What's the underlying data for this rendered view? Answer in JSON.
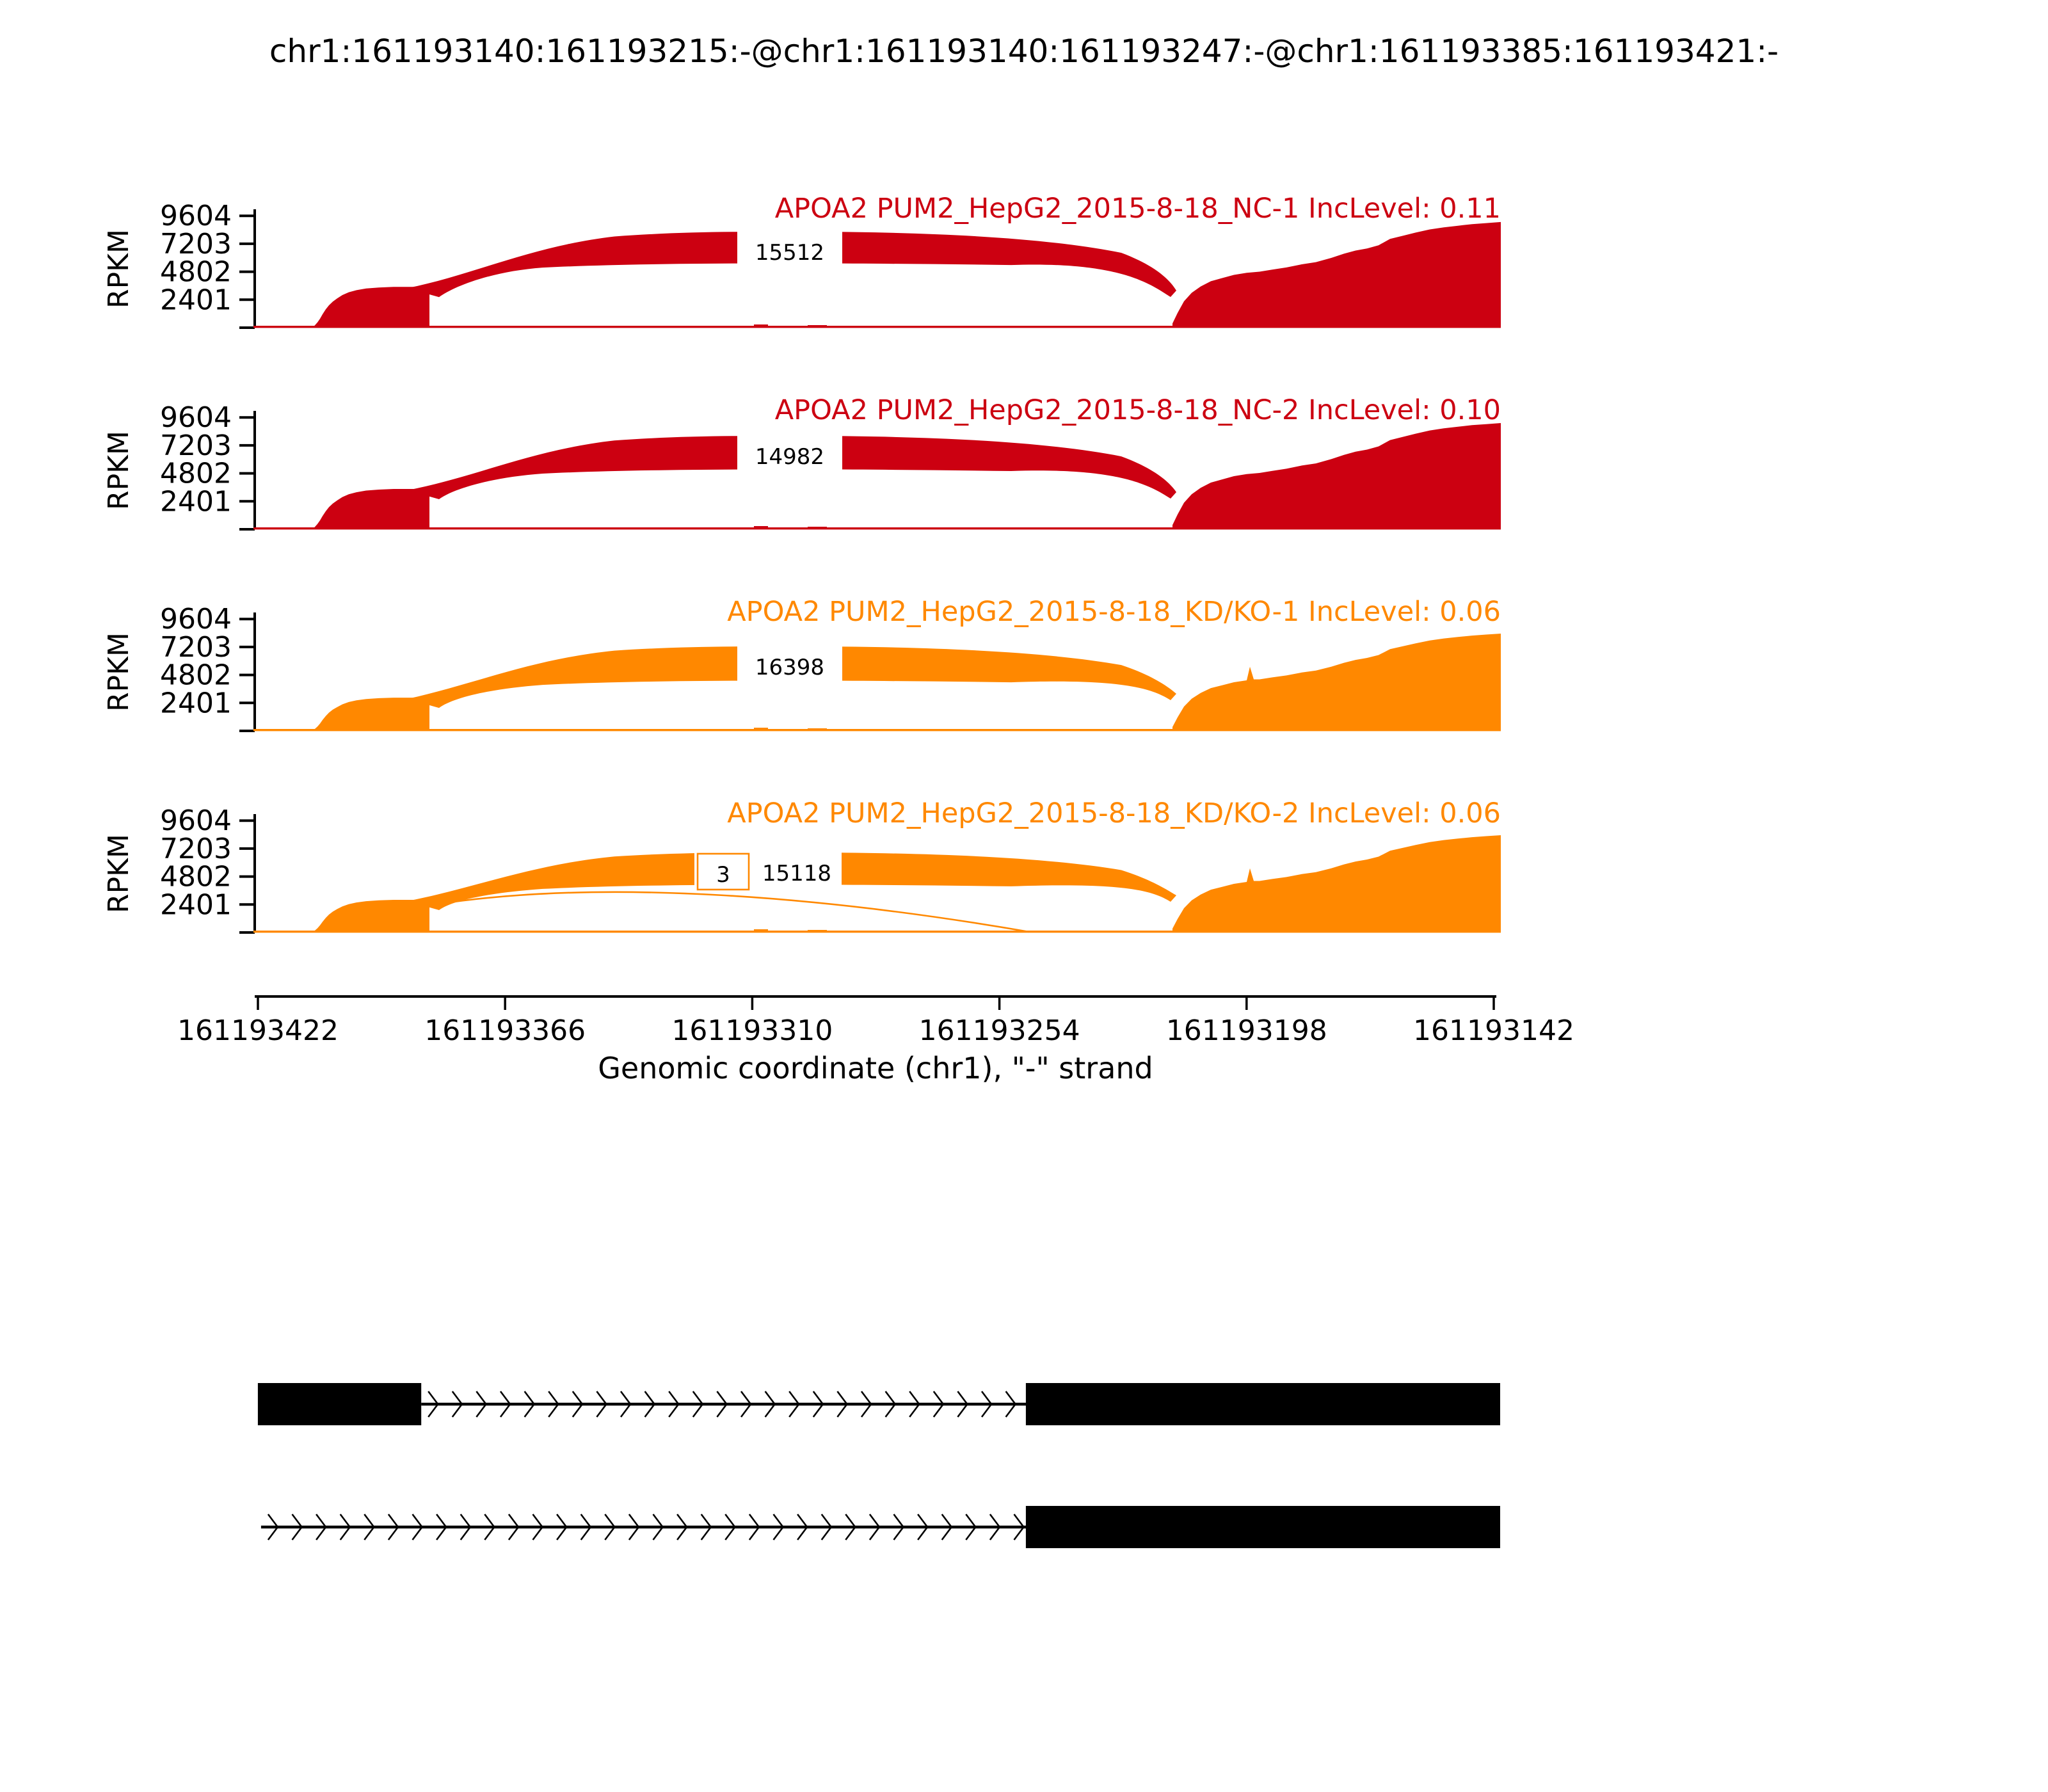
{
  "title": "chr1:161193140:161193215:-@chr1:161193140:161193247:-@chr1:161193385:161193421:-",
  "colors": {
    "nc": "#CC0011",
    "kd": "#FF8800",
    "axis": "#000000",
    "background": "#FFFFFF",
    "junction_text": "#000000",
    "transcript": "#000000"
  },
  "y_axis": {
    "label": "RPKM",
    "tick_labels": [
      "2401",
      "4802",
      "7203",
      "9604"
    ]
  },
  "x_axis": {
    "label": "Genomic coordinate (chr1), \"-\" strand",
    "tick_labels": [
      "161193422",
      "161193366",
      "161193310",
      "161193254",
      "161193198",
      "161193142"
    ]
  },
  "chart_data": {
    "type": "area",
    "subtype": "rna-seq-sashimi-plot",
    "gene": "APOA2",
    "title": "chr1:161193140:161193215:-@chr1:161193140:161193247:-@chr1:161193385:161193421:-",
    "xlabel": "Genomic coordinate (chr1), \"-\" strand",
    "ylabel": "RPKM",
    "strand": "-",
    "x_axis_direction": "decreasing",
    "x_tick_coords": [
      161193422,
      161193366,
      161193310,
      161193254,
      161193198,
      161193142
    ],
    "y_ticks": [
      2401,
      4802,
      7203,
      9604
    ],
    "grid": false,
    "legend": "none",
    "tracks": [
      {
        "label": "APOA2 PUM2_HepG2_2015-8-18_NC-1 IncLevel: 0.11",
        "sample": "PUM2_HepG2_2015-8-18_NC-1",
        "inc_level": "0.11",
        "color": "#CC0011",
        "junction_reads": [
          "15512"
        ],
        "right_spike": false,
        "coverage_rpkm": {
          "left_exon_peak": 3500,
          "arc_band_top": 8240,
          "arc_band_thickness": 2860,
          "right_exon_peak": 9070
        }
      },
      {
        "label": "APOA2 PUM2_HepG2_2015-8-18_NC-2 IncLevel: 0.10",
        "sample": "PUM2_HepG2_2015-8-18_NC-2",
        "inc_level": "0.10",
        "color": "#CC0011",
        "junction_reads": [
          "14982"
        ],
        "right_spike": false,
        "coverage_rpkm": {
          "left_exon_peak": 3460,
          "arc_band_top": 8020,
          "arc_band_thickness": 3020,
          "right_exon_peak": 9120
        }
      },
      {
        "label": "APOA2 PUM2_HepG2_2015-8-18_KD/KO-1 IncLevel: 0.06",
        "sample": "PUM2_HepG2_2015-8-18_KD/KO-1",
        "inc_level": "0.06",
        "color": "#FF8800",
        "junction_reads": [
          "16398"
        ],
        "right_spike": true,
        "coverage_rpkm": {
          "left_exon_peak": 2850,
          "arc_band_top": 7250,
          "arc_band_thickness": 3080,
          "right_exon_peak": 8350
        }
      },
      {
        "label": "APOA2 PUM2_HepG2_2015-8-18_KD/KO-2 IncLevel: 0.06",
        "sample": "PUM2_HepG2_2015-8-18_KD/KO-2",
        "inc_level": "0.06",
        "color": "#FF8800",
        "junction_reads": [
          "15118",
          "3"
        ],
        "right_spike": true,
        "coverage_rpkm": {
          "left_exon_peak": 2800,
          "arc_band_top": 6870,
          "arc_band_thickness": 2910,
          "right_exon_peak": 8350
        }
      }
    ],
    "transcripts": [
      {
        "exons_bp": [
          [
            161193385,
            161193421
          ],
          [
            161193140,
            161193247
          ]
        ],
        "intron_bp": [
          161193247,
          161193385
        ]
      },
      {
        "exons_bp": [
          [
            161193140,
            161193247
          ]
        ],
        "intron_bp": [
          161193247,
          161193421
        ]
      }
    ]
  }
}
